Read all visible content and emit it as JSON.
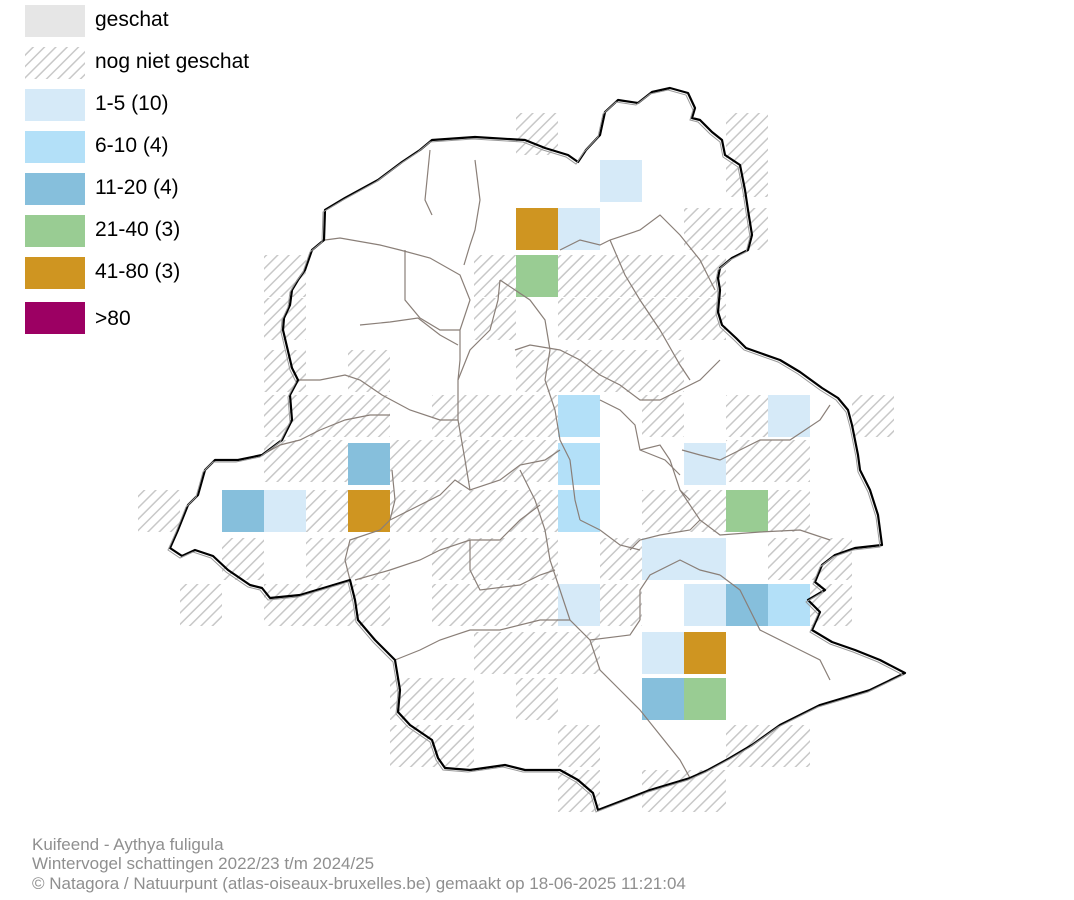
{
  "legend": {
    "items": [
      {
        "label": "geschat",
        "type": "solid",
        "color": "#e6e6e6"
      },
      {
        "label": "nog niet geschat",
        "type": "hatch",
        "color": "#c8c8c8"
      },
      {
        "label": "1-5 (10)",
        "type": "solid",
        "color": "#d6eaf8"
      },
      {
        "label": "6-10 (4)",
        "type": "solid",
        "color": "#b3e0f8"
      },
      {
        "label": "11-20 (4)",
        "type": "solid",
        "color": "#86bfdc"
      },
      {
        "label": "21-40 (3)",
        "type": "solid",
        "color": "#99cc93"
      },
      {
        "label": "41-80 (3)",
        "type": "solid",
        "color": "#cf9521"
      },
      {
        "label": ">80",
        "type": "solid",
        "color": "#9c0063"
      }
    ]
  },
  "footer": {
    "line1": "Kuifeend - Aythya fuligula",
    "line2": "Wintervogel schattingen 2022/23 t/m 2024/25",
    "line3": "© Natagora / Natuurpunt (atlas-oiseaux-bruxelles.be) gemaakt op 18-06-2025 11:21:04"
  },
  "colors": {
    "hatch": "#c8c8c8",
    "boundary": "#000000",
    "municipality_lines": "#8a7f78"
  }
}
